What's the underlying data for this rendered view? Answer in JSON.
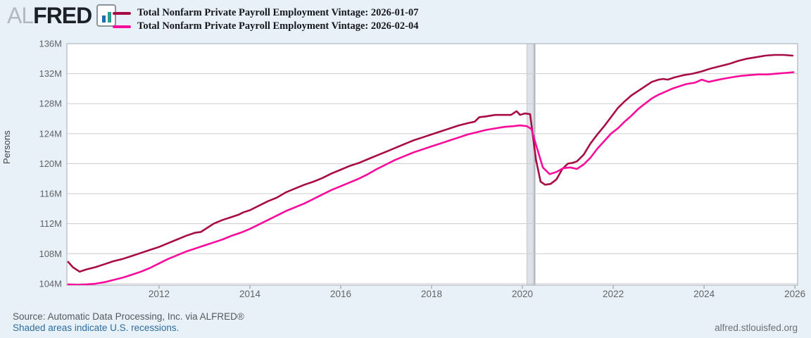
{
  "header": {
    "logo": {
      "prefix": "AL",
      "brand": "FRED",
      "icon_bar1_color": "#1d6fb0",
      "icon_bar2_color": "#2b9e94"
    },
    "legend": [
      {
        "label": "Total Nonfarm Private Payroll Employment Vintage: 2026-01-07",
        "color": "#a80c44"
      },
      {
        "label": "Total Nonfarm Private Payroll Employment Vintage: 2026-02-04",
        "color": "#fa0a9b"
      }
    ]
  },
  "footer": {
    "source": "Source: Automatic Data Processing, Inc. via ALFRED®",
    "recession_note": "Shaded areas indicate U.S. recessions.",
    "site": "alfred.stlouisfed.org"
  },
  "chart_data": {
    "type": "line",
    "title": "",
    "ylabel": "Persons",
    "xlabel": "",
    "grid": "horizontal",
    "legend_position": "top-left",
    "x_range": [
      2009.97,
      2026.06
    ],
    "y_range": [
      103.8,
      136
    ],
    "y_ticks": [
      {
        "label": "136M",
        "value": 136
      },
      {
        "label": "132M",
        "value": 132
      },
      {
        "label": "128M",
        "value": 128
      },
      {
        "label": "124M",
        "value": 124
      },
      {
        "label": "120M",
        "value": 120
      },
      {
        "label": "116M",
        "value": 116
      },
      {
        "label": "112M",
        "value": 112
      },
      {
        "label": "108M",
        "value": 108
      },
      {
        "label": "104M",
        "value": 104
      }
    ],
    "x_ticks": [
      {
        "label": "2012",
        "value": 2012
      },
      {
        "label": "2014",
        "value": 2014
      },
      {
        "label": "2016",
        "value": 2016
      },
      {
        "label": "2018",
        "value": 2018
      },
      {
        "label": "2020",
        "value": 2020
      },
      {
        "label": "2022",
        "value": 2022
      },
      {
        "label": "2024",
        "value": 2024
      },
      {
        "label": "2026",
        "value": 2026
      }
    ],
    "recession_band": {
      "start_year": 2020.1,
      "end_year": 2020.24,
      "edge_year": 2020.27,
      "fill": "#dee2e8",
      "edge_color": "#9ea6ad"
    },
    "colors": {
      "plot_bg": "#ffffff",
      "frame": "#b0b8c0",
      "grid": "#cccccc",
      "tick_text": "#5f6469"
    },
    "series": [
      {
        "name": "Total Nonfarm Private Payroll Employment Vintage: 2026-01-07",
        "color": "#a80c44",
        "unit": "Millions of Persons",
        "data": [
          [
            2010.0,
            106.9
          ],
          [
            2010.1,
            106.2
          ],
          [
            2010.25,
            105.6
          ],
          [
            2010.4,
            105.9
          ],
          [
            2010.6,
            106.2
          ],
          [
            2010.8,
            106.6
          ],
          [
            2011.0,
            107.0
          ],
          [
            2011.2,
            107.3
          ],
          [
            2011.4,
            107.7
          ],
          [
            2011.6,
            108.1
          ],
          [
            2011.8,
            108.5
          ],
          [
            2012.0,
            108.9
          ],
          [
            2012.2,
            109.4
          ],
          [
            2012.4,
            109.9
          ],
          [
            2012.6,
            110.4
          ],
          [
            2012.8,
            110.8
          ],
          [
            2012.92,
            110.9
          ],
          [
            2013.05,
            111.4
          ],
          [
            2013.2,
            112.0
          ],
          [
            2013.4,
            112.5
          ],
          [
            2013.6,
            112.9
          ],
          [
            2013.75,
            113.2
          ],
          [
            2013.85,
            113.5
          ],
          [
            2014.0,
            113.8
          ],
          [
            2014.2,
            114.4
          ],
          [
            2014.4,
            115.0
          ],
          [
            2014.6,
            115.5
          ],
          [
            2014.8,
            116.2
          ],
          [
            2015.0,
            116.7
          ],
          [
            2015.2,
            117.2
          ],
          [
            2015.4,
            117.6
          ],
          [
            2015.6,
            118.1
          ],
          [
            2015.8,
            118.7
          ],
          [
            2016.0,
            119.2
          ],
          [
            2016.2,
            119.7
          ],
          [
            2016.4,
            120.1
          ],
          [
            2016.6,
            120.6
          ],
          [
            2016.8,
            121.1
          ],
          [
            2017.0,
            121.6
          ],
          [
            2017.2,
            122.1
          ],
          [
            2017.4,
            122.6
          ],
          [
            2017.6,
            123.1
          ],
          [
            2017.8,
            123.5
          ],
          [
            2018.0,
            123.9
          ],
          [
            2018.2,
            124.3
          ],
          [
            2018.4,
            124.7
          ],
          [
            2018.6,
            125.1
          ],
          [
            2018.8,
            125.4
          ],
          [
            2018.95,
            125.6
          ],
          [
            2019.05,
            126.2
          ],
          [
            2019.2,
            126.3
          ],
          [
            2019.4,
            126.5
          ],
          [
            2019.6,
            126.5
          ],
          [
            2019.75,
            126.5
          ],
          [
            2019.87,
            127.0
          ],
          [
            2019.95,
            126.5
          ],
          [
            2020.05,
            126.7
          ],
          [
            2020.17,
            126.6
          ],
          [
            2020.3,
            120.5
          ],
          [
            2020.4,
            117.6
          ],
          [
            2020.5,
            117.2
          ],
          [
            2020.62,
            117.3
          ],
          [
            2020.75,
            117.9
          ],
          [
            2020.88,
            119.3
          ],
          [
            2021.0,
            120.0
          ],
          [
            2021.1,
            120.1
          ],
          [
            2021.2,
            120.3
          ],
          [
            2021.35,
            121.2
          ],
          [
            2021.5,
            122.7
          ],
          [
            2021.65,
            123.9
          ],
          [
            2021.8,
            125.0
          ],
          [
            2021.95,
            126.2
          ],
          [
            2022.1,
            127.4
          ],
          [
            2022.25,
            128.3
          ],
          [
            2022.4,
            129.1
          ],
          [
            2022.55,
            129.7
          ],
          [
            2022.7,
            130.3
          ],
          [
            2022.85,
            130.9
          ],
          [
            2023.0,
            131.2
          ],
          [
            2023.1,
            131.3
          ],
          [
            2023.2,
            131.2
          ],
          [
            2023.35,
            131.5
          ],
          [
            2023.55,
            131.8
          ],
          [
            2023.75,
            132.0
          ],
          [
            2023.95,
            132.3
          ],
          [
            2024.15,
            132.7
          ],
          [
            2024.35,
            133.0
          ],
          [
            2024.55,
            133.3
          ],
          [
            2024.75,
            133.7
          ],
          [
            2024.95,
            134.0
          ],
          [
            2025.15,
            134.2
          ],
          [
            2025.35,
            134.4
          ],
          [
            2025.55,
            134.5
          ],
          [
            2025.75,
            134.5
          ],
          [
            2025.95,
            134.4
          ]
        ]
      },
      {
        "name": "Total Nonfarm Private Payroll Employment Vintage: 2026-02-04",
        "color": "#fa0a9b",
        "unit": "Millions of Persons",
        "data": [
          [
            2010.0,
            103.9
          ],
          [
            2010.2,
            103.85
          ],
          [
            2010.4,
            103.9
          ],
          [
            2010.6,
            104.0
          ],
          [
            2010.8,
            104.2
          ],
          [
            2011.0,
            104.5
          ],
          [
            2011.2,
            104.8
          ],
          [
            2011.4,
            105.2
          ],
          [
            2011.6,
            105.6
          ],
          [
            2011.8,
            106.1
          ],
          [
            2012.0,
            106.7
          ],
          [
            2012.2,
            107.3
          ],
          [
            2012.4,
            107.8
          ],
          [
            2012.6,
            108.3
          ],
          [
            2012.8,
            108.7
          ],
          [
            2013.0,
            109.1
          ],
          [
            2013.2,
            109.5
          ],
          [
            2013.4,
            109.9
          ],
          [
            2013.6,
            110.4
          ],
          [
            2013.8,
            110.8
          ],
          [
            2014.0,
            111.3
          ],
          [
            2014.2,
            111.9
          ],
          [
            2014.4,
            112.5
          ],
          [
            2014.6,
            113.1
          ],
          [
            2014.8,
            113.7
          ],
          [
            2015.0,
            114.2
          ],
          [
            2015.2,
            114.7
          ],
          [
            2015.4,
            115.3
          ],
          [
            2015.6,
            115.9
          ],
          [
            2015.8,
            116.5
          ],
          [
            2016.0,
            117.0
          ],
          [
            2016.2,
            117.5
          ],
          [
            2016.4,
            118.0
          ],
          [
            2016.6,
            118.6
          ],
          [
            2016.8,
            119.3
          ],
          [
            2017.0,
            119.9
          ],
          [
            2017.2,
            120.5
          ],
          [
            2017.4,
            121.0
          ],
          [
            2017.6,
            121.5
          ],
          [
            2017.8,
            121.9
          ],
          [
            2018.0,
            122.3
          ],
          [
            2018.2,
            122.7
          ],
          [
            2018.4,
            123.1
          ],
          [
            2018.6,
            123.5
          ],
          [
            2018.8,
            123.9
          ],
          [
            2019.0,
            124.2
          ],
          [
            2019.2,
            124.5
          ],
          [
            2019.4,
            124.7
          ],
          [
            2019.6,
            124.9
          ],
          [
            2019.8,
            125.0
          ],
          [
            2019.95,
            125.1
          ],
          [
            2020.1,
            125.0
          ],
          [
            2020.2,
            124.6
          ],
          [
            2020.3,
            122.5
          ],
          [
            2020.45,
            119.5
          ],
          [
            2020.6,
            118.6
          ],
          [
            2020.75,
            118.9
          ],
          [
            2020.9,
            119.4
          ],
          [
            2021.05,
            119.5
          ],
          [
            2021.2,
            119.3
          ],
          [
            2021.35,
            119.9
          ],
          [
            2021.5,
            120.8
          ],
          [
            2021.65,
            122.0
          ],
          [
            2021.8,
            123.0
          ],
          [
            2021.95,
            124.0
          ],
          [
            2022.1,
            124.7
          ],
          [
            2022.25,
            125.6
          ],
          [
            2022.4,
            126.4
          ],
          [
            2022.55,
            127.3
          ],
          [
            2022.7,
            128.0
          ],
          [
            2022.85,
            128.7
          ],
          [
            2023.0,
            129.2
          ],
          [
            2023.15,
            129.6
          ],
          [
            2023.3,
            130.0
          ],
          [
            2023.45,
            130.3
          ],
          [
            2023.6,
            130.6
          ],
          [
            2023.8,
            130.8
          ],
          [
            2023.95,
            131.2
          ],
          [
            2024.1,
            130.9
          ],
          [
            2024.25,
            131.1
          ],
          [
            2024.4,
            131.3
          ],
          [
            2024.6,
            131.5
          ],
          [
            2024.8,
            131.7
          ],
          [
            2025.0,
            131.8
          ],
          [
            2025.2,
            131.9
          ],
          [
            2025.4,
            131.9
          ],
          [
            2025.6,
            132.0
          ],
          [
            2025.8,
            132.1
          ],
          [
            2025.97,
            132.2
          ]
        ]
      }
    ]
  }
}
